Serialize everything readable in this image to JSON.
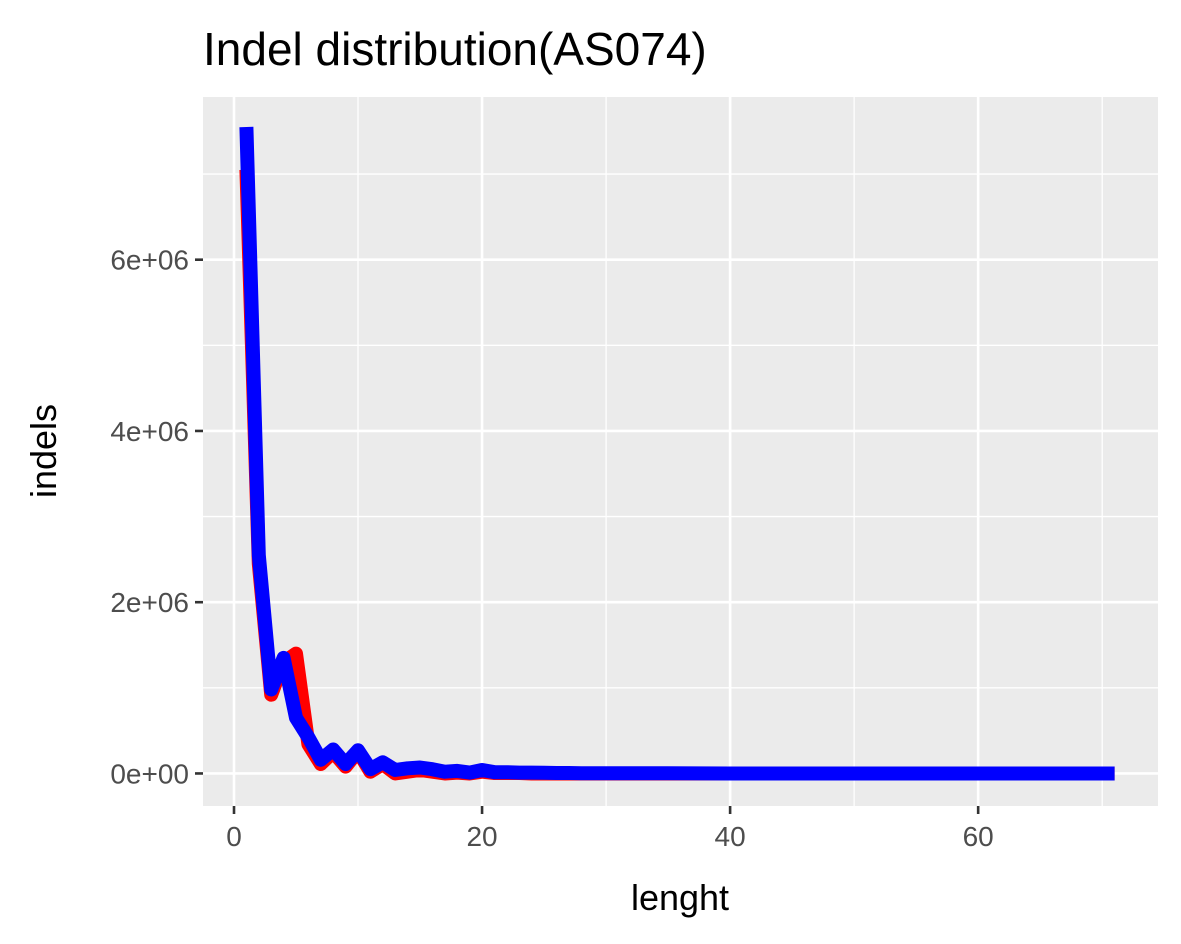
{
  "chart_data": {
    "type": "line",
    "title": "Indel distribution(AS074)",
    "xlabel": "lenght",
    "ylabel": "indels",
    "xlim": [
      -2.5,
      74.5
    ],
    "ylim": [
      -380000,
      7900000
    ],
    "x_ticks": [
      0,
      20,
      40,
      60
    ],
    "x_tick_labels": [
      "0",
      "20",
      "40",
      "60"
    ],
    "y_ticks": [
      0,
      2000000,
      4000000,
      6000000
    ],
    "y_tick_labels": [
      "0e+00",
      "2e+06",
      "4e+06",
      "6e+06"
    ],
    "grid": true,
    "background": "#ebebeb",
    "series": [
      {
        "color": "#ff0000",
        "x": [
          1,
          2,
          3,
          4,
          5,
          6,
          7,
          8,
          9,
          10,
          11,
          12,
          13,
          14,
          15,
          16,
          17,
          18,
          19,
          20,
          21,
          22,
          23,
          24,
          25,
          26,
          27,
          28,
          29,
          30,
          32,
          35,
          40,
          45,
          50,
          55,
          60,
          65,
          71
        ],
        "values": [
          7050000,
          2450000,
          920000,
          1300000,
          1400000,
          340000,
          110000,
          250000,
          80000,
          260000,
          20000,
          110000,
          0,
          20000,
          40000,
          20000,
          0,
          10000,
          0,
          20000,
          5000,
          5000,
          5000,
          0,
          0,
          0,
          0,
          0,
          0,
          0,
          0,
          0,
          0,
          0,
          0,
          0,
          0,
          0,
          0
        ]
      },
      {
        "color": "#0000ff",
        "x": [
          1,
          2,
          3,
          4,
          5,
          6,
          7,
          8,
          9,
          10,
          11,
          12,
          13,
          14,
          15,
          16,
          17,
          18,
          19,
          20,
          21,
          22,
          23,
          24,
          25,
          26,
          27,
          28,
          29,
          30,
          32,
          35,
          40,
          45,
          50,
          55,
          60,
          65,
          71
        ],
        "values": [
          7550000,
          2550000,
          980000,
          1350000,
          650000,
          420000,
          160000,
          280000,
          110000,
          270000,
          50000,
          130000,
          40000,
          60000,
          70000,
          50000,
          20000,
          30000,
          10000,
          40000,
          15000,
          15000,
          10000,
          10000,
          8000,
          5000,
          5000,
          3000,
          3000,
          3000,
          2000,
          2000,
          0,
          0,
          0,
          0,
          0,
          0,
          0
        ]
      }
    ]
  }
}
